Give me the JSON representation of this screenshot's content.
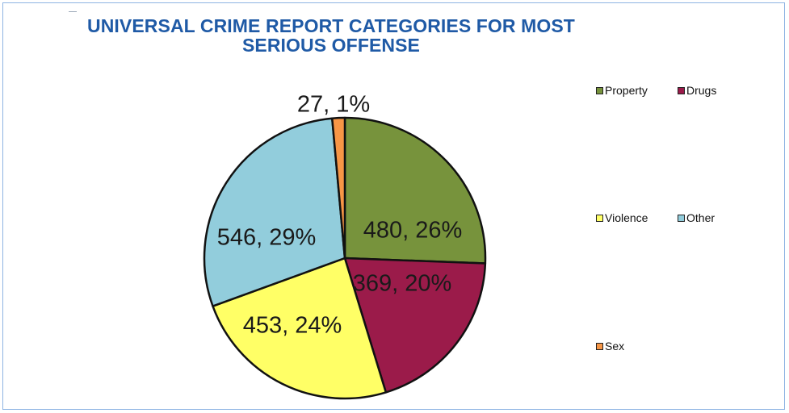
{
  "title_lines": [
    "UNIVERSAL CRIME REPORT CATEGORIES FOR MOST",
    "SERIOUS OFFENSE"
  ],
  "chart_data": {
    "type": "pie",
    "title": "UNIVERSAL CRIME REPORT CATEGORIES FOR MOST SERIOUS OFFENSE",
    "slices": [
      {
        "name": "Property",
        "value": 480,
        "label": "480, 26%",
        "color": "#77933c"
      },
      {
        "name": "Drugs",
        "value": 369,
        "label": "369, 20%",
        "color": "#9b1b4a"
      },
      {
        "name": "Violence",
        "value": 453,
        "label": "453, 24%",
        "color": "#ffff66"
      },
      {
        "name": "Other",
        "value": 546,
        "label": "546, 29%",
        "color": "#92cddc"
      },
      {
        "name": "Sex",
        "value": 27,
        "label": "27, 1%",
        "color": "#f79646"
      }
    ],
    "legend_position": "right"
  }
}
